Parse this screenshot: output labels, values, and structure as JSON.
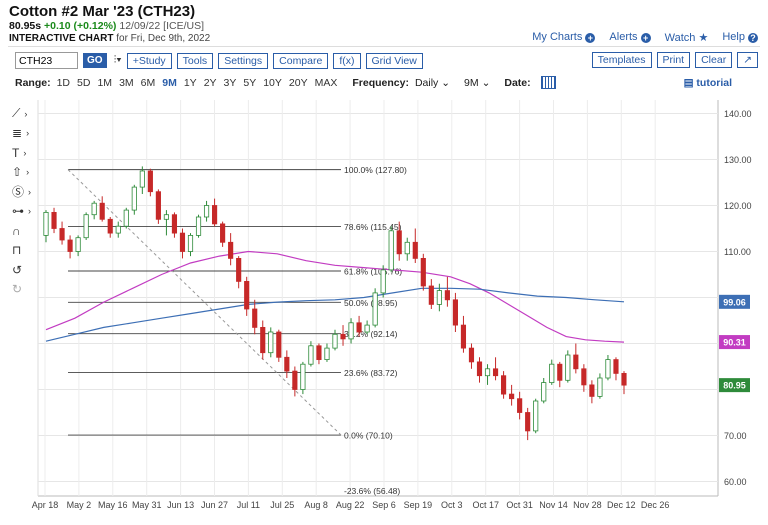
{
  "header": {
    "title": "Cotton #2 Mar '23 (CTH23)",
    "last": "80.95s",
    "change": "+0.10 (+0.12%)",
    "meta": "12/09/22 [ICE/US]",
    "interactive_label": "INTERACTIVE CHART",
    "interactive_date": "for Fri, Dec 9th, 2022"
  },
  "links": {
    "my_charts": "My Charts",
    "alerts": "Alerts",
    "watch": "Watch",
    "help": "Help"
  },
  "toolbar": {
    "symbol_value": "CTH23",
    "go": "GO",
    "study": "+Study",
    "tools": "Tools",
    "settings": "Settings",
    "compare": "Compare",
    "fx": "f(x)",
    "grid_view": "Grid View",
    "templates": "Templates",
    "print": "Print",
    "clear": "Clear"
  },
  "range_bar": {
    "range_label": "Range:",
    "ranges": [
      "1D",
      "5D",
      "1M",
      "3M",
      "6M",
      "9M",
      "1Y",
      "2Y",
      "3Y",
      "5Y",
      "10Y",
      "20Y",
      "MAX"
    ],
    "selected": "9M",
    "frequency_label": "Frequency:",
    "frequency_value": "Daily",
    "period_value": "9M",
    "date_label": "Date:",
    "tutorial": "tutorial"
  },
  "colors": {
    "up": "#2e8b3a",
    "down": "#c62828",
    "ma_pink": "#c23cc2",
    "ma_blue": "#3d6fb5",
    "accent": "#2a5da8"
  },
  "chart_data": {
    "type": "candlestick",
    "ylim": [
      57,
      143
    ],
    "y_ticks": [
      140,
      130,
      120,
      110,
      100,
      90,
      80,
      70,
      60
    ],
    "y_tick_labels": [
      "140.00",
      "130.00",
      "120.00",
      "110.00",
      "",
      "",
      "",
      "70.00",
      "60.00"
    ],
    "x_ticks": [
      "Apr 18",
      "May 2",
      "May 16",
      "May 31",
      "Jun 13",
      "Jun 27",
      "Jul 11",
      "Jul 25",
      "Aug 8",
      "Aug 22",
      "Sep 6",
      "Sep 19",
      "Oct 3",
      "Oct 17",
      "Oct 31",
      "Nov 14",
      "Nov 28",
      "Dec 12",
      "Dec 26"
    ],
    "last_value_labels": [
      {
        "value": 99.06,
        "label": "99.06",
        "color": "#3d6fb5"
      },
      {
        "value": 90.31,
        "label": "90.31",
        "color": "#c23cc2"
      },
      {
        "value": 80.95,
        "label": "80.95",
        "color": "#2e8b3a"
      }
    ],
    "fibonacci": [
      {
        "label": "100.0% (127.80)",
        "value": 127.8
      },
      {
        "label": "78.6% (115.45)",
        "value": 115.45
      },
      {
        "label": "61.8% (105.76)",
        "value": 105.76
      },
      {
        "label": "50.0% (98.95)",
        "value": 98.95
      },
      {
        "label": "38.2% (92.14)",
        "value": 92.14
      },
      {
        "label": "23.6% (83.72)",
        "value": 83.72
      },
      {
        "label": "0.0% (70.10)",
        "value": 70.1
      },
      {
        "label": "-23.6% (56.48)",
        "value": 56.48
      }
    ],
    "trendline": {
      "from": [
        "May 2",
        127.8
      ],
      "to": [
        "Aug 22",
        70.1
      ]
    },
    "ma_pink": [
      [
        0,
        93
      ],
      [
        3,
        95.5
      ],
      [
        6,
        99
      ],
      [
        9,
        102
      ],
      [
        12,
        105
      ],
      [
        15,
        107.5
      ],
      [
        18,
        109
      ],
      [
        21,
        110
      ],
      [
        24,
        109.5
      ],
      [
        27,
        108
      ],
      [
        30,
        107
      ],
      [
        33,
        106.5
      ],
      [
        36,
        106
      ],
      [
        39,
        105.5
      ],
      [
        42,
        104.5
      ],
      [
        44,
        103
      ],
      [
        46,
        101
      ],
      [
        48,
        98.5
      ],
      [
        50,
        96
      ],
      [
        52,
        93.5
      ],
      [
        54,
        91.5
      ],
      [
        56,
        90.8
      ],
      [
        58,
        90.5
      ],
      [
        60,
        90.31
      ]
    ],
    "ma_blue": [
      [
        0,
        90.5
      ],
      [
        3,
        92
      ],
      [
        6,
        93.5
      ],
      [
        9,
        94.5
      ],
      [
        12,
        95.5
      ],
      [
        15,
        96.5
      ],
      [
        18,
        97.5
      ],
      [
        21,
        98.5
      ],
      [
        24,
        99
      ],
      [
        27,
        99.3
      ],
      [
        30,
        99.5
      ],
      [
        33,
        100
      ],
      [
        36,
        101
      ],
      [
        39,
        102
      ],
      [
        42,
        102
      ],
      [
        45,
        101.8
      ],
      [
        48,
        101
      ],
      [
        51,
        100.3
      ],
      [
        54,
        100
      ],
      [
        57,
        99.5
      ],
      [
        60,
        99.06
      ]
    ],
    "candles": [
      [
        113.5,
        119.0,
        112.0,
        118.5
      ],
      [
        118.5,
        119.5,
        114.0,
        115.0
      ],
      [
        115.0,
        116.5,
        111.5,
        112.5
      ],
      [
        112.5,
        113.5,
        108.5,
        110.0
      ],
      [
        110.0,
        113.5,
        109.0,
        113.0
      ],
      [
        113.0,
        118.5,
        112.5,
        118.0
      ],
      [
        118.0,
        121.0,
        117.0,
        120.5
      ],
      [
        120.5,
        122.0,
        116.5,
        117.0
      ],
      [
        117.0,
        117.5,
        113.0,
        114.0
      ],
      [
        114.0,
        116.5,
        113.0,
        115.5
      ],
      [
        115.5,
        119.5,
        115.0,
        119.0
      ],
      [
        119.0,
        124.5,
        118.0,
        124.0
      ],
      [
        124.0,
        128.5,
        122.5,
        127.5
      ],
      [
        127.5,
        128.0,
        122.0,
        123.0
      ],
      [
        123.0,
        123.5,
        116.0,
        117.0
      ],
      [
        117.0,
        119.0,
        113.5,
        118.0
      ],
      [
        118.0,
        118.5,
        113.0,
        114.0
      ],
      [
        114.0,
        115.0,
        108.5,
        110.0
      ],
      [
        110.0,
        114.0,
        109.0,
        113.5
      ],
      [
        113.5,
        118.0,
        113.0,
        117.5
      ],
      [
        117.5,
        121.0,
        116.5,
        120.0
      ],
      [
        120.0,
        121.5,
        115.5,
        116.0
      ],
      [
        116.0,
        116.5,
        111.0,
        112.0
      ],
      [
        112.0,
        114.0,
        107.0,
        108.5
      ],
      [
        108.5,
        109.0,
        102.0,
        103.5
      ],
      [
        103.5,
        104.5,
        96.0,
        97.5
      ],
      [
        97.5,
        99.5,
        92.0,
        93.5
      ],
      [
        93.5,
        95.0,
        86.5,
        88.0
      ],
      [
        88.0,
        93.5,
        87.0,
        92.5
      ],
      [
        92.5,
        93.0,
        86.0,
        87.0
      ],
      [
        87.0,
        88.5,
        82.5,
        84.0
      ],
      [
        84.0,
        85.0,
        78.5,
        80.0
      ],
      [
        80.0,
        86.0,
        79.0,
        85.5
      ],
      [
        85.5,
        90.5,
        85.0,
        89.5
      ],
      [
        89.5,
        90.0,
        85.5,
        86.5
      ],
      [
        86.5,
        90.0,
        86.0,
        89.0
      ],
      [
        89.0,
        93.0,
        88.5,
        92.0
      ],
      [
        92.0,
        94.0,
        89.5,
        91.0
      ],
      [
        91.0,
        95.5,
        90.0,
        94.5
      ],
      [
        94.5,
        96.0,
        91.5,
        92.5
      ],
      [
        92.5,
        95.0,
        92.0,
        94.0
      ],
      [
        94.0,
        102.0,
        93.5,
        101.0
      ],
      [
        101.0,
        107.0,
        100.0,
        106.0
      ],
      [
        106.0,
        115.5,
        105.5,
        114.5
      ],
      [
        114.5,
        116.5,
        108.0,
        109.5
      ],
      [
        109.5,
        113.0,
        108.0,
        112.0
      ],
      [
        112.0,
        115.0,
        107.5,
        108.5
      ],
      [
        108.5,
        109.5,
        101.5,
        102.5
      ],
      [
        102.5,
        104.0,
        97.5,
        98.5
      ],
      [
        98.5,
        103.0,
        97.0,
        101.5
      ],
      [
        101.5,
        104.5,
        98.0,
        99.5
      ],
      [
        99.5,
        101.0,
        92.5,
        94.0
      ],
      [
        94.0,
        96.0,
        88.0,
        89.0
      ],
      [
        89.0,
        90.0,
        84.5,
        86.0
      ],
      [
        86.0,
        87.0,
        81.5,
        83.0
      ],
      [
        83.0,
        85.5,
        81.0,
        84.5
      ],
      [
        84.5,
        87.0,
        82.0,
        83.0
      ],
      [
        83.0,
        84.0,
        78.0,
        79.0
      ],
      [
        79.0,
        81.0,
        76.5,
        78.0
      ],
      [
        78.0,
        79.5,
        73.5,
        75.0
      ],
      [
        75.0,
        76.0,
        69.0,
        71.0
      ],
      [
        71.0,
        78.0,
        70.5,
        77.5
      ],
      [
        77.5,
        82.5,
        77.0,
        81.5
      ],
      [
        81.5,
        86.5,
        81.0,
        85.5
      ],
      [
        85.5,
        86.0,
        80.5,
        82.0
      ],
      [
        82.0,
        88.5,
        81.5,
        87.5
      ],
      [
        87.5,
        90.0,
        83.5,
        84.5
      ],
      [
        84.5,
        85.5,
        79.5,
        81.0
      ],
      [
        81.0,
        82.0,
        77.0,
        78.5
      ],
      [
        78.5,
        83.5,
        78.0,
        82.5
      ],
      [
        82.5,
        87.5,
        82.0,
        86.5
      ],
      [
        86.5,
        87.0,
        82.0,
        83.5
      ],
      [
        83.5,
        84.0,
        79.0,
        80.95
      ]
    ]
  }
}
